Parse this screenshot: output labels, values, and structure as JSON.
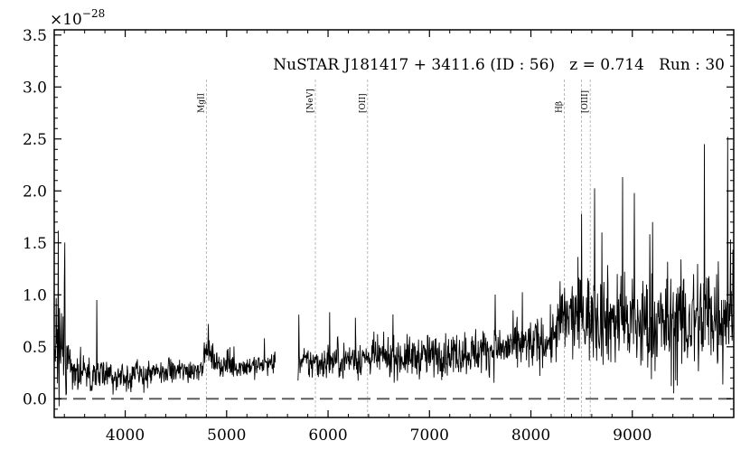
{
  "chart_data": {
    "type": "line",
    "title": "NuSTAR J181417 + 3411.6 (ID : 56)   z = 0.714   Run : 30",
    "xlabel": "",
    "ylabel": "",
    "y_multiplier_label": "×10",
    "y_multiplier_exponent": "−28",
    "xlim": [
      3300,
      10000
    ],
    "ylim": [
      -0.18,
      3.55
    ],
    "x_ticks": [
      4000,
      5000,
      6000,
      7000,
      8000,
      9000
    ],
    "x_tick_labels": [
      "4000",
      "5000",
      "6000",
      "7000",
      "8000",
      "9000"
    ],
    "y_ticks": [
      0.0,
      0.5,
      1.0,
      1.5,
      2.0,
      2.5,
      3.0,
      3.5
    ],
    "y_tick_labels": [
      "0.0",
      "0.5",
      "1.0",
      "1.5",
      "2.0",
      "2.5",
      "3.0",
      "3.5"
    ],
    "zero_line": 0.0,
    "emission_lines": [
      {
        "label": "MgII",
        "x": 4800
      },
      {
        "label": "[NeV]",
        "x": 5875
      },
      {
        "label": "[OII]",
        "x": 6390
      },
      {
        "label": "Hβ",
        "x": 8330
      },
      {
        "label": "",
        "x": 8500
      },
      {
        "label": "[OIII]",
        "x": 8585
      }
    ],
    "series": [
      {
        "continuum": [
          [
            3300,
            0.55
          ],
          [
            3350,
            0.45
          ],
          [
            3450,
            0.3
          ],
          [
            3600,
            0.24
          ],
          [
            3800,
            0.22
          ],
          [
            4000,
            0.22
          ],
          [
            4200,
            0.23
          ],
          [
            4400,
            0.25
          ],
          [
            4600,
            0.27
          ],
          [
            4750,
            0.3
          ],
          [
            4800,
            0.48
          ],
          [
            4850,
            0.4
          ],
          [
            4950,
            0.32
          ],
          [
            5100,
            0.31
          ],
          [
            5300,
            0.32
          ],
          [
            5480,
            0.34
          ],
          [
            5500,
            null
          ],
          [
            5700,
            null
          ],
          [
            5700,
            0.34
          ],
          [
            5900,
            0.35
          ],
          [
            6200,
            0.38
          ],
          [
            6500,
            0.4
          ],
          [
            6800,
            0.4
          ],
          [
            7100,
            0.42
          ],
          [
            7400,
            0.45
          ],
          [
            7700,
            0.48
          ],
          [
            8000,
            0.52
          ],
          [
            8200,
            0.56
          ],
          [
            8300,
            0.75
          ],
          [
            8500,
            0.8
          ],
          [
            8700,
            0.78
          ],
          [
            8900,
            0.75
          ],
          [
            9100,
            0.7
          ],
          [
            9300,
            0.72
          ],
          [
            9500,
            0.72
          ],
          [
            9700,
            0.78
          ],
          [
            9900,
            0.85
          ],
          [
            10000,
            0.9
          ]
        ],
        "noise": [
          [
            3300,
            0.55
          ],
          [
            3500,
            0.18
          ],
          [
            4000,
            0.13
          ],
          [
            4700,
            0.11
          ],
          [
            5500,
            0.1
          ],
          [
            5700,
            0.15
          ],
          [
            6500,
            0.17
          ],
          [
            7500,
            0.2
          ],
          [
            8200,
            0.23
          ],
          [
            8300,
            0.35
          ],
          [
            9000,
            0.45
          ],
          [
            9500,
            0.5
          ],
          [
            10000,
            0.6
          ]
        ],
        "spikes": [
          [
            3400,
            1.12
          ],
          [
            3720,
            0.95
          ],
          [
            4820,
            0.72
          ],
          [
            6270,
            0.78
          ],
          [
            8500,
            1.78
          ],
          [
            8700,
            1.6
          ],
          [
            9020,
            1.98
          ],
          [
            9200,
            1.7
          ],
          [
            9710,
            2.45
          ],
          [
            9940,
            2.52
          ]
        ]
      }
    ]
  }
}
